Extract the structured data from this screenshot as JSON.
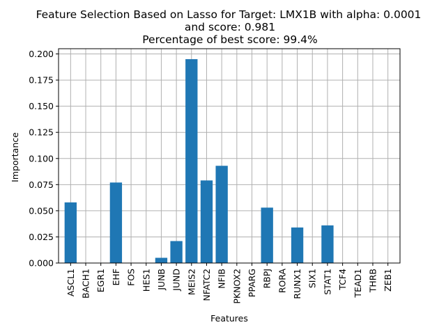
{
  "chart_data": {
    "type": "bar",
    "title_lines": [
      "Feature Selection Based on Lasso for Target: LMX1B with alpha: 0.0001",
      "and score: 0.981",
      "Percentage of best score: 99.4%"
    ],
    "xlabel": "Features",
    "ylabel": "Importance",
    "categories": [
      "ASCL1",
      "BACH1",
      "EGR1",
      "EHF",
      "FOS",
      "HES1",
      "JUNB",
      "JUND",
      "MEIS2",
      "NFATC2",
      "NFIB",
      "PKNOX2",
      "PPARG",
      "RBPJ",
      "RORA",
      "RUNX1",
      "SIX1",
      "STAT1",
      "TCF4",
      "TEAD1",
      "THRB",
      "ZEB1"
    ],
    "values": [
      0.058,
      0,
      0,
      0.077,
      0,
      0,
      0.005,
      0.021,
      0.195,
      0.079,
      0.093,
      0,
      0,
      0.053,
      0,
      0.034,
      0,
      0.036,
      0,
      0,
      0,
      0
    ],
    "ylim": [
      0,
      0.205
    ],
    "yticks": [
      0,
      0.025,
      0.05,
      0.075,
      0.1,
      0.125,
      0.15,
      0.175,
      0.2
    ],
    "ytick_labels": [
      "0.000",
      "0.025",
      "0.050",
      "0.075",
      "0.100",
      "0.125",
      "0.150",
      "0.175",
      "0.200"
    ],
    "grid": true,
    "bar_color": "#1f77b4"
  }
}
